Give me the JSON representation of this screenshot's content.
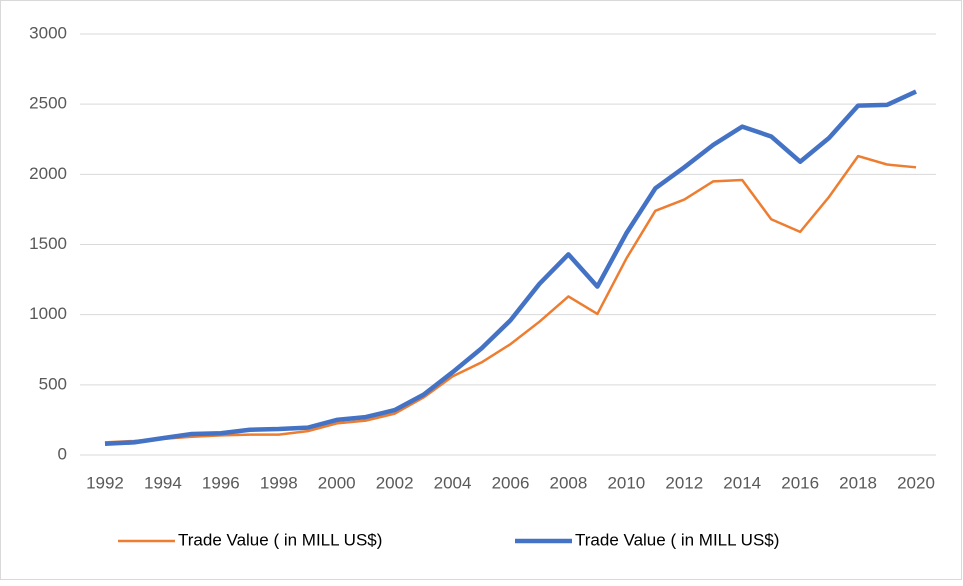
{
  "chart_data": {
    "type": "line",
    "categories": [
      "1992",
      null,
      "1994",
      null,
      "1996",
      null,
      "1998",
      null,
      "2000",
      null,
      "2002",
      null,
      "2004",
      null,
      "2006",
      null,
      "2008",
      null,
      "2010",
      null,
      "2012",
      null,
      "2014",
      null,
      "2016",
      null,
      "2018",
      null,
      "2020"
    ],
    "series": [
      {
        "name": "Trade Value ( in MILL US$)",
        "color": "#ed7d31",
        "values": [
          90,
          100,
          115,
          130,
          140,
          145,
          145,
          170,
          225,
          245,
          295,
          410,
          560,
          660,
          790,
          950,
          1130,
          1005,
          1400,
          1740,
          1820,
          1950,
          1960,
          1680,
          1590,
          1840,
          2130,
          2070,
          2050
        ]
      },
      {
        "name": "Trade Value ( in MILL US$)",
        "color": "#4472c4",
        "values": [
          80,
          90,
          120,
          150,
          155,
          180,
          185,
          195,
          250,
          270,
          320,
          430,
          590,
          760,
          960,
          1220,
          1430,
          1200,
          1580,
          1900,
          2050,
          2210,
          2340,
          2270,
          2090,
          2260,
          2490,
          2495,
          2590
        ]
      }
    ],
    "ylim": [
      0,
      3000
    ],
    "yticks": [
      0,
      500,
      1000,
      1500,
      2000,
      2500,
      3000
    ],
    "grid": true,
    "legend": "bottom"
  }
}
